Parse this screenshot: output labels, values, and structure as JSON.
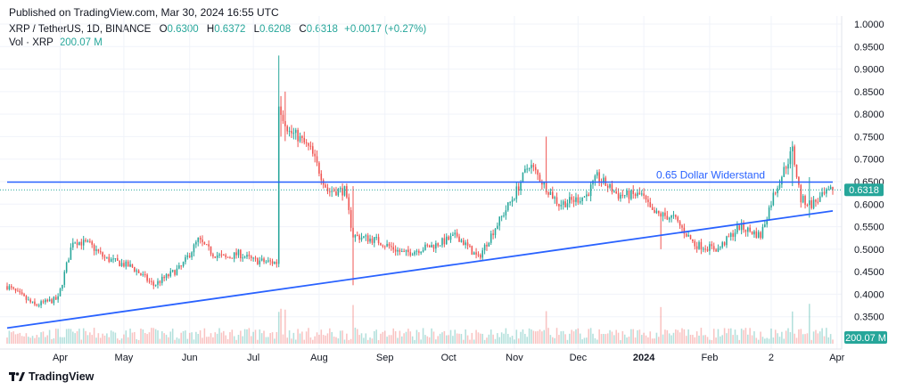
{
  "header": {
    "published": "Published on TradingView.com, Mar 30, 2024 16:55 UTC"
  },
  "legend": {
    "symbol": "XRP / TetherUS, 1D, BINANCE",
    "open_label": "O",
    "open": "0.6300",
    "high_label": "H",
    "high": "0.6372",
    "low_label": "L",
    "low": "0.6208",
    "close_label": "C",
    "close": "0.6318",
    "change": "+0.0017 (+0.27%)",
    "vol_label": "Vol · XRP",
    "vol": "200.07 M"
  },
  "footer": {
    "brand": "TradingView",
    "brand_icon": "tradingview-logo-icon"
  },
  "colors": {
    "up": "#26a69a",
    "down": "#ef5350",
    "line": "#2962ff",
    "text": "#131722",
    "grid": "#f0f3fa"
  },
  "chart_data": {
    "type": "candlestick",
    "y_ticks": [
      "1.0000",
      "0.9500",
      "0.9000",
      "0.8500",
      "0.8000",
      "0.7500",
      "0.7000",
      "0.6500",
      "0.6000",
      "0.5500",
      "0.5000",
      "0.4500",
      "0.4000",
      "0.3500"
    ],
    "ylim": [
      0.3,
      1.0
    ],
    "x_ticks": [
      "Apr",
      "May",
      "Jun",
      "Jul",
      "Aug",
      "Sep",
      "Oct",
      "Nov",
      "Dec",
      "2024",
      "Feb",
      "2",
      "Apr"
    ],
    "price_label": "0.6318",
    "volume_label": "200.07 M",
    "annotation": "0.65 Dollar Widerstand",
    "horizontal_line": 0.649,
    "trendline": [
      {
        "x": "2023-03-07",
        "y": 0.325
      },
      {
        "x": "2024-03-30",
        "y": 0.585
      }
    ],
    "anchors": [
      [
        "2023-03-07",
        0.418
      ],
      [
        "2023-03-20",
        0.375
      ],
      [
        "2023-03-31",
        0.39
      ],
      [
        "2023-04-07",
        0.52
      ],
      [
        "2023-04-15",
        0.51
      ],
      [
        "2023-04-22",
        0.48
      ],
      [
        "2023-05-05",
        0.46
      ],
      [
        "2023-05-15",
        0.42
      ],
      [
        "2023-05-28",
        0.46
      ],
      [
        "2023-06-05",
        0.52
      ],
      [
        "2023-06-12",
        0.49
      ],
      [
        "2023-06-18",
        0.48
      ],
      [
        "2023-06-24",
        0.49
      ],
      [
        "2023-07-01",
        0.475
      ],
      [
        "2023-07-12",
        0.47
      ],
      [
        "2023-07-13",
        0.82
      ],
      [
        "2023-07-18",
        0.76
      ],
      [
        "2023-07-22",
        0.75
      ],
      [
        "2023-07-28",
        0.72
      ],
      [
        "2023-08-05",
        0.63
      ],
      [
        "2023-08-13",
        0.63
      ],
      [
        "2023-08-17",
        0.53
      ],
      [
        "2023-08-28",
        0.52
      ],
      [
        "2023-09-10",
        0.49
      ],
      [
        "2023-09-25",
        0.51
      ],
      [
        "2023-10-05",
        0.53
      ],
      [
        "2023-10-15",
        0.48
      ],
      [
        "2023-10-22",
        0.54
      ],
      [
        "2023-11-01",
        0.62
      ],
      [
        "2023-11-08",
        0.69
      ],
      [
        "2023-11-14",
        0.65
      ],
      [
        "2023-11-22",
        0.6
      ],
      [
        "2023-11-30",
        0.61
      ],
      [
        "2023-12-05",
        0.62
      ],
      [
        "2023-12-10",
        0.66
      ],
      [
        "2023-12-20",
        0.62
      ],
      [
        "2023-12-31",
        0.62
      ],
      [
        "2024-01-05",
        0.58
      ],
      [
        "2024-01-15",
        0.57
      ],
      [
        "2024-01-25",
        0.51
      ],
      [
        "2024-02-05",
        0.5
      ],
      [
        "2024-02-15",
        0.55
      ],
      [
        "2024-02-25",
        0.53
      ],
      [
        "2024-03-02",
        0.62
      ],
      [
        "2024-03-11",
        0.72
      ],
      [
        "2024-03-15",
        0.61
      ],
      [
        "2024-03-20",
        0.6
      ],
      [
        "2024-03-30",
        0.632
      ]
    ]
  }
}
